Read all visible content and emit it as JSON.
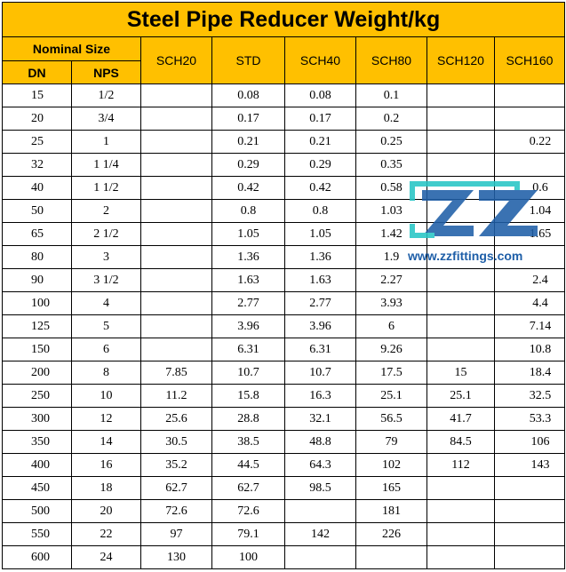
{
  "title": "Steel Pipe Reducer Weight/kg",
  "header": {
    "nominal_size": "Nominal Size",
    "dn": "DN",
    "nps": "NPS",
    "columns": [
      "SCH20",
      "STD",
      "SCH40",
      "SCH80",
      "SCH120",
      "SCH160"
    ]
  },
  "rows": [
    {
      "dn": "15",
      "nps": "1/2",
      "sch20": "",
      "std": "0.08",
      "sch40": "0.08",
      "sch80": "0.1",
      "sch120": "",
      "sch160": ""
    },
    {
      "dn": "20",
      "nps": "3/4",
      "sch20": "",
      "std": "0.17",
      "sch40": "0.17",
      "sch80": "0.2",
      "sch120": "",
      "sch160": ""
    },
    {
      "dn": "25",
      "nps": "1",
      "sch20": "",
      "std": "0.21",
      "sch40": "0.21",
      "sch80": "0.25",
      "sch120": "",
      "sch160": "0.22"
    },
    {
      "dn": "32",
      "nps": "1 1/4",
      "sch20": "",
      "std": "0.29",
      "sch40": "0.29",
      "sch80": "0.35",
      "sch120": "",
      "sch160": ""
    },
    {
      "dn": "40",
      "nps": "1 1/2",
      "sch20": "",
      "std": "0.42",
      "sch40": "0.42",
      "sch80": "0.58",
      "sch120": "",
      "sch160": "0.6"
    },
    {
      "dn": "50",
      "nps": "2",
      "sch20": "",
      "std": "0.8",
      "sch40": "0.8",
      "sch80": "1.03",
      "sch120": "",
      "sch160": "1.04"
    },
    {
      "dn": "65",
      "nps": "2 1/2",
      "sch20": "",
      "std": "1.05",
      "sch40": "1.05",
      "sch80": "1.42",
      "sch120": "",
      "sch160": "1.65"
    },
    {
      "dn": "80",
      "nps": "3",
      "sch20": "",
      "std": "1.36",
      "sch40": "1.36",
      "sch80": "1.9",
      "sch120": "",
      "sch160": ""
    },
    {
      "dn": "90",
      "nps": "3 1/2",
      "sch20": "",
      "std": "1.63",
      "sch40": "1.63",
      "sch80": "2.27",
      "sch120": "",
      "sch160": "2.4"
    },
    {
      "dn": "100",
      "nps": "4",
      "sch20": "",
      "std": "2.77",
      "sch40": "2.77",
      "sch80": "3.93",
      "sch120": "",
      "sch160": "4.4"
    },
    {
      "dn": "125",
      "nps": "5",
      "sch20": "",
      "std": "3.96",
      "sch40": "3.96",
      "sch80": "6",
      "sch120": "",
      "sch160": "7.14"
    },
    {
      "dn": "150",
      "nps": "6",
      "sch20": "",
      "std": "6.31",
      "sch40": "6.31",
      "sch80": "9.26",
      "sch120": "",
      "sch160": "10.8"
    },
    {
      "dn": "200",
      "nps": "8",
      "sch20": "7.85",
      "std": "10.7",
      "sch40": "10.7",
      "sch80": "17.5",
      "sch120": "15",
      "sch160": "18.4"
    },
    {
      "dn": "250",
      "nps": "10",
      "sch20": "11.2",
      "std": "15.8",
      "sch40": "16.3",
      "sch80": "25.1",
      "sch120": "25.1",
      "sch160": "32.5"
    },
    {
      "dn": "300",
      "nps": "12",
      "sch20": "25.6",
      "std": "28.8",
      "sch40": "32.1",
      "sch80": "56.5",
      "sch120": "41.7",
      "sch160": "53.3"
    },
    {
      "dn": "350",
      "nps": "14",
      "sch20": "30.5",
      "std": "38.5",
      "sch40": "48.8",
      "sch80": "79",
      "sch120": "84.5",
      "sch160": "106"
    },
    {
      "dn": "400",
      "nps": "16",
      "sch20": "35.2",
      "std": "44.5",
      "sch40": "64.3",
      "sch80": "102",
      "sch120": "112",
      "sch160": "143"
    },
    {
      "dn": "450",
      "nps": "18",
      "sch20": "62.7",
      "std": "62.7",
      "sch40": "98.5",
      "sch80": "165",
      "sch120": "",
      "sch160": ""
    },
    {
      "dn": "500",
      "nps": "20",
      "sch20": "72.6",
      "std": "72.6",
      "sch40": "",
      "sch80": "181",
      "sch120": "",
      "sch160": ""
    },
    {
      "dn": "550",
      "nps": "22",
      "sch20": "97",
      "std": "79.1",
      "sch40": "142",
      "sch80": "226",
      "sch120": "",
      "sch160": ""
    },
    {
      "dn": "600",
      "nps": "24",
      "sch20": "130",
      "std": "100",
      "sch40": "",
      "sch80": "",
      "sch120": "",
      "sch160": ""
    }
  ],
  "watermark": {
    "logo_text": "ZZ",
    "url": "www.zzfittings.com"
  },
  "colors": {
    "header_bg": "#ffc000",
    "logo_blue": "#1f5fa8",
    "logo_teal": "#27c6c6"
  }
}
